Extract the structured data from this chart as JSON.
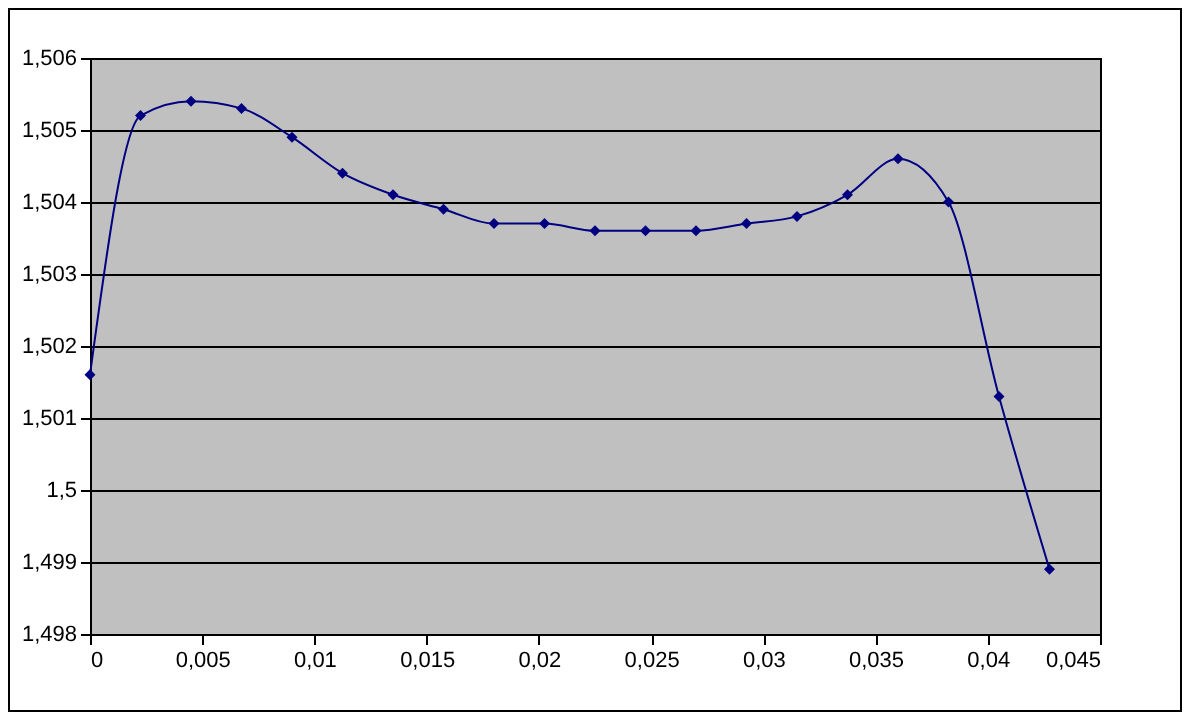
{
  "chart_data": {
    "type": "line",
    "x": [
      0,
      0.00225,
      0.0045,
      0.00675,
      0.009,
      0.01125,
      0.0135,
      0.01575,
      0.018,
      0.02025,
      0.0225,
      0.02475,
      0.027,
      0.02925,
      0.0315,
      0.03375,
      0.036,
      0.03825,
      0.0405,
      0.04275
    ],
    "series": [
      {
        "color": "#000080",
        "values": [
          1.5016,
          1.5052,
          1.5054,
          1.5053,
          1.5049,
          1.5044,
          1.5041,
          1.5039,
          1.5037,
          1.5037,
          1.5036,
          1.5036,
          1.5036,
          1.5037,
          1.5038,
          1.5041,
          1.5046,
          1.504,
          1.5013,
          1.4989
        ]
      }
    ],
    "xlim": [
      0,
      0.045
    ],
    "ylim": [
      1.498,
      1.506
    ],
    "xticks": [
      0,
      {
        "value": 0.005,
        "label": "0,005"
      },
      {
        "value": 0.01,
        "label": "0,01"
      },
      {
        "value": 0.015,
        "label": "0,015"
      },
      {
        "value": 0.02,
        "label": "0,02"
      },
      {
        "value": 0.025,
        "label": "0,025"
      },
      {
        "value": 0.03,
        "label": "0,03"
      },
      {
        "value": 0.035,
        "label": "0,035"
      },
      {
        "value": 0.04,
        "label": "0,04"
      },
      {
        "value": 0.045,
        "label": "0,045"
      }
    ],
    "yticks": [
      {
        "value": 1.498,
        "label": "1,498"
      },
      {
        "value": 1.499,
        "label": "1,499"
      },
      {
        "value": 1.5,
        "label": "1,5"
      },
      {
        "value": 1.501,
        "label": "1,501"
      },
      {
        "value": 1.502,
        "label": "1,502"
      },
      {
        "value": 1.503,
        "label": "1,503"
      },
      {
        "value": 1.504,
        "label": "1,504"
      },
      {
        "value": 1.505,
        "label": "1,505"
      },
      {
        "value": 1.506,
        "label": "1,506"
      }
    ],
    "grid": "y",
    "marker": "diamond",
    "line_style": "solid"
  }
}
